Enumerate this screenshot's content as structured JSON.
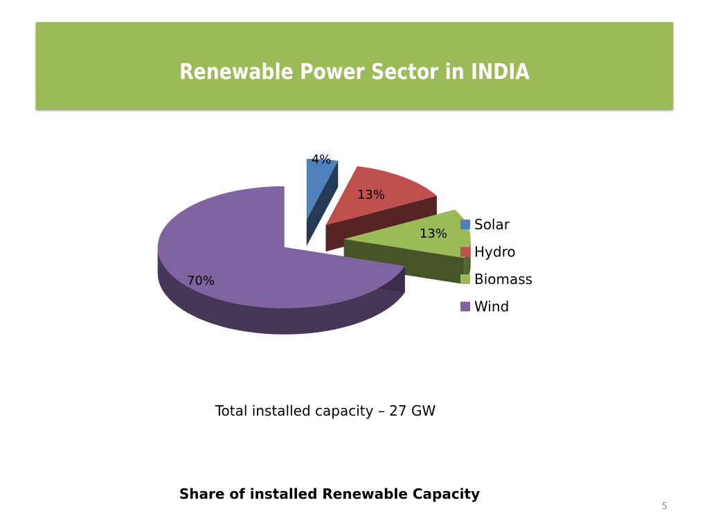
{
  "slide": {
    "title": "Renewable Power Sector in INDIA",
    "caption": "Total installed capacity – 27 GW",
    "footer_title": "Share of installed Renewable Capacity",
    "page_number": "5"
  },
  "chart_data": {
    "type": "pie",
    "title": "",
    "categories": [
      "Solar",
      "Hydro",
      "Biomass",
      "Wind"
    ],
    "values": [
      4,
      13,
      13,
      70
    ],
    "labels": [
      "4%",
      "13%",
      "13%",
      "70%"
    ],
    "colors": [
      "#4f81bd",
      "#c0504d",
      "#9bbb59",
      "#8064a2"
    ],
    "legend_position": "right",
    "style": "3d-exploded"
  }
}
